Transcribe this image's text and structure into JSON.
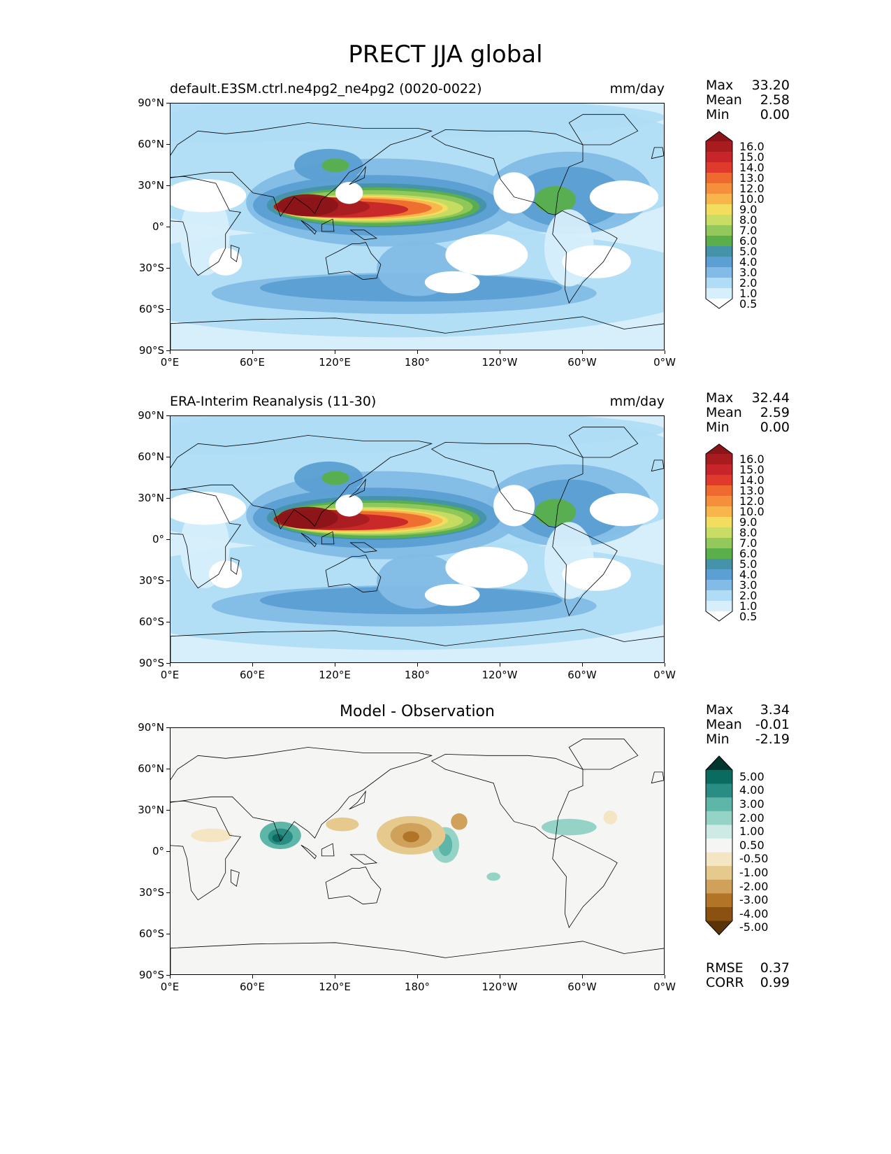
{
  "title": "PRECT JJA global",
  "chart_data": [
    {
      "type": "heatmap",
      "panel": "model",
      "title": "default.E3SM.ctrl.ne4pg2_ne4pg2 (0020-0022)",
      "units": "mm/day",
      "stats": {
        "max_label": "Max",
        "max": "33.20",
        "mean_label": "Mean",
        "mean": "2.58",
        "min_label": "Min",
        "min": "0.00"
      },
      "x_ticks": [
        "0°E",
        "60°E",
        "120°E",
        "180°",
        "120°W",
        "60°W",
        "0°W"
      ],
      "y_ticks": [
        "90°N",
        "60°N",
        "30°N",
        "0°",
        "30°S",
        "60°S",
        "90°S"
      ],
      "xlim": [
        0,
        360
      ],
      "ylim": [
        -90,
        90
      ],
      "colorbar_levels": [
        "16.0",
        "15.0",
        "14.0",
        "13.0",
        "12.0",
        "10.0",
        "9.0",
        "8.0",
        "7.0",
        "6.0",
        "5.0",
        "4.0",
        "3.0",
        "2.0",
        "1.0",
        "0.5"
      ],
      "colorbar_colors": [
        "#8b1419",
        "#a81c20",
        "#c7252a",
        "#df3a2b",
        "#ee6a2e",
        "#f58f3b",
        "#f8b54b",
        "#f3dd5e",
        "#c9dc63",
        "#93c85a",
        "#5aaf4b",
        "#4593a8",
        "#5b9fd3",
        "#82bce6",
        "#b0dcf5",
        "#d7eefb",
        "#ffffff"
      ]
    },
    {
      "type": "heatmap",
      "panel": "reference",
      "title": "ERA-Interim Reanalysis (11-30)",
      "units": "mm/day",
      "stats": {
        "max_label": "Max",
        "max": "32.44",
        "mean_label": "Mean",
        "mean": "2.59",
        "min_label": "Min",
        "min": "0.00"
      },
      "x_ticks": [
        "0°E",
        "60°E",
        "120°E",
        "180°",
        "120°W",
        "60°W",
        "0°W"
      ],
      "y_ticks": [
        "90°N",
        "60°N",
        "30°N",
        "0°",
        "30°S",
        "60°S",
        "90°S"
      ],
      "xlim": [
        0,
        360
      ],
      "ylim": [
        -90,
        90
      ],
      "colorbar_levels": [
        "16.0",
        "15.0",
        "14.0",
        "13.0",
        "12.0",
        "10.0",
        "9.0",
        "8.0",
        "7.0",
        "6.0",
        "5.0",
        "4.0",
        "3.0",
        "2.0",
        "1.0",
        "0.5"
      ],
      "colorbar_colors": [
        "#8b1419",
        "#a81c20",
        "#c7252a",
        "#df3a2b",
        "#ee6a2e",
        "#f58f3b",
        "#f8b54b",
        "#f3dd5e",
        "#c9dc63",
        "#93c85a",
        "#5aaf4b",
        "#4593a8",
        "#5b9fd3",
        "#82bce6",
        "#b0dcf5",
        "#d7eefb",
        "#ffffff"
      ]
    },
    {
      "type": "heatmap",
      "panel": "difference",
      "title": "Model - Observation",
      "stats": {
        "max_label": "Max",
        "max": "3.34",
        "mean_label": "Mean",
        "mean": "-0.01",
        "min_label": "Min",
        "min": "-2.19"
      },
      "metrics": {
        "rmse_label": "RMSE",
        "rmse": "0.37",
        "corr_label": "CORR",
        "corr": "0.99"
      },
      "x_ticks": [
        "0°E",
        "60°E",
        "120°E",
        "180°",
        "120°W",
        "60°W",
        "0°W"
      ],
      "y_ticks": [
        "90°N",
        "60°N",
        "30°N",
        "0°",
        "30°S",
        "60°S",
        "90°S"
      ],
      "xlim": [
        0,
        360
      ],
      "ylim": [
        -90,
        90
      ],
      "colorbar_levels": [
        "5.00",
        "4.00",
        "3.00",
        "2.00",
        "1.00",
        "0.50",
        "-0.50",
        "-1.00",
        "-2.00",
        "-3.00",
        "-4.00",
        "-5.00"
      ],
      "colorbar_colors": [
        "#00362e",
        "#0a6b61",
        "#2a8d83",
        "#5db6a8",
        "#95d3c7",
        "#cdeae4",
        "#f5f5f3",
        "#f4e6c2",
        "#e5c98d",
        "#cfa15a",
        "#b27528",
        "#8a5110",
        "#5a3405"
      ]
    }
  ]
}
